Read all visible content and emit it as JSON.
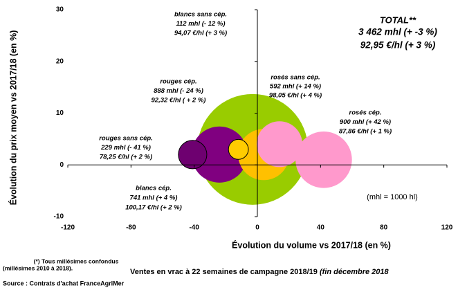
{
  "chart_data": {
    "type": "bubble",
    "xlabel": "Évolution du volume vs 2017/18 (en %)",
    "ylabel": "Évolution du prix moyen vs 2017/18 (en %)",
    "xlim": [
      -120,
      120
    ],
    "ylim": [
      -10,
      30
    ],
    "xticks": [
      -120,
      -80,
      -40,
      0,
      40,
      80,
      120
    ],
    "yticks": [
      -10,
      0,
      10,
      20,
      30
    ],
    "series": [
      {
        "name": "TOTAL**",
        "color": "#99cc00",
        "x": -3,
        "y": 3,
        "size": 3462,
        "labels": [
          "3 462 mhl (+ -3 %)",
          "92,95 €/hl (+ 3 %)"
        ]
      },
      {
        "name": "rouges cép.",
        "color": "#800080",
        "x": -24,
        "y": 2,
        "size": 888,
        "labels": [
          "888 mhl (- 24 %)",
          "92,32 €/hl ( + 2 %)"
        ]
      },
      {
        "name": "rouges sans cép.",
        "color": "#6e0070",
        "x": -41,
        "y": 2,
        "size": 229,
        "labels": [
          "229 mhl (- 41 %)",
          "78,25 €/hl (+ 2 %)"
        ]
      },
      {
        "name": "blancs cép.",
        "color": "#ffc000",
        "x": 4,
        "y": 2,
        "size": 741,
        "labels": [
          "741 mhl (+ 4 %)",
          "100,17 €/hl (+ 2 %)"
        ]
      },
      {
        "name": "blancs sans cép.",
        "color": "#ffcc00",
        "x": -12,
        "y": 3,
        "size": 112,
        "labels": [
          "112 mhl (- 12 %)",
          "94,07 €/hl (+ 3 %)"
        ]
      },
      {
        "name": "rosés sans cép.",
        "color": "#ff99cc",
        "x": 14,
        "y": 4,
        "size": 592,
        "labels": [
          "592 mhl (+ 14 %)",
          "98,05 €/hl (+ 4 %)"
        ]
      },
      {
        "name": "rosés cép.",
        "color": "#ff99cc",
        "x": 42,
        "y": 1,
        "size": 900,
        "labels": [
          "900 mhl (+ 42 %)",
          "87,86 €/hl (+ 1 %)"
        ]
      }
    ],
    "note": "(mhl = 1000 hl)",
    "footnote1": "(*) Tous millésimes confondus",
    "footnote2": "(millésimes 2010 à 2018).",
    "caption": "Ventes en vrac à 22 semaines de campagne 2018/19",
    "caption_italic": "(fin décembre 2018",
    "source": "Source : Contrats d'achat FranceAgriMer"
  }
}
